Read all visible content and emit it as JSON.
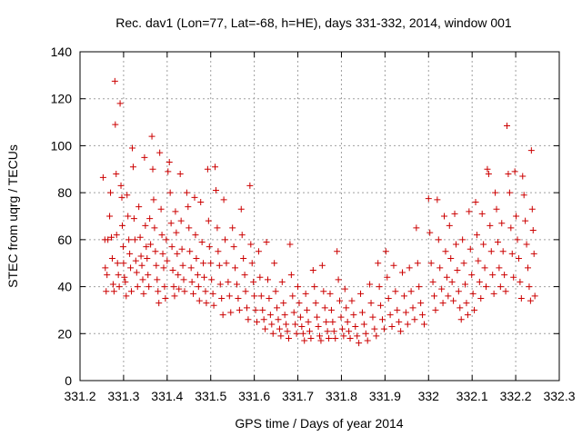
{
  "chart_data": {
    "type": "scatter",
    "title": "Rec. dav1 (Lon=77, Lat=-68, h=HE), days 331-332, 2014, window 001",
    "xlabel": "GPS time / Days of year 2014",
    "ylabel": "STEC from uqrg / TECUs",
    "xlim": [
      331.2,
      332.3
    ],
    "ylim": [
      0,
      140
    ],
    "xticks": [
      "331.2",
      "331.3",
      "331.4",
      "331.5",
      "331.6",
      "331.7",
      "331.8",
      "331.9",
      "332",
      "332.1",
      "332.2",
      "332.3"
    ],
    "yticks": [
      "0",
      "20",
      "40",
      "60",
      "80",
      "100",
      "120",
      "140"
    ],
    "grid": true,
    "marker": "+",
    "color": "#cc0000",
    "points": [
      [
        331.253,
        86.5
      ],
      [
        331.257,
        60
      ],
      [
        331.258,
        48
      ],
      [
        331.26,
        38
      ],
      [
        331.262,
        45
      ],
      [
        331.264,
        60
      ],
      [
        331.268,
        70
      ],
      [
        331.27,
        80
      ],
      [
        331.272,
        61
      ],
      [
        331.274,
        52
      ],
      [
        331.276,
        41
      ],
      [
        331.278,
        38
      ],
      [
        331.28,
        127.5
      ],
      [
        331.281,
        109
      ],
      [
        331.283,
        88
      ],
      [
        331.284,
        62
      ],
      [
        331.286,
        50
      ],
      [
        331.288,
        45
      ],
      [
        331.29,
        40
      ],
      [
        331.292,
        118
      ],
      [
        331.294,
        83
      ],
      [
        331.296,
        78
      ],
      [
        331.297,
        66
      ],
      [
        331.299,
        57
      ],
      [
        331.3,
        50
      ],
      [
        331.302,
        44
      ],
      [
        331.304,
        42
      ],
      [
        331.306,
        36
      ],
      [
        331.308,
        79
      ],
      [
        331.31,
        70
      ],
      [
        331.312,
        60
      ],
      [
        331.314,
        54
      ],
      [
        331.316,
        48
      ],
      [
        331.318,
        38
      ],
      [
        331.32,
        99
      ],
      [
        331.322,
        91
      ],
      [
        331.324,
        69
      ],
      [
        331.326,
        60
      ],
      [
        331.328,
        51
      ],
      [
        331.33,
        46
      ],
      [
        331.332,
        40
      ],
      [
        331.335,
        74
      ],
      [
        331.338,
        61
      ],
      [
        331.34,
        53
      ],
      [
        331.342,
        49
      ],
      [
        331.344,
        43
      ],
      [
        331.346,
        37
      ],
      [
        331.348,
        95
      ],
      [
        331.35,
        66
      ],
      [
        331.352,
        57
      ],
      [
        331.354,
        52
      ],
      [
        331.356,
        45
      ],
      [
        331.358,
        40
      ],
      [
        331.36,
        69
      ],
      [
        331.362,
        58
      ],
      [
        331.365,
        104
      ],
      [
        331.367,
        90
      ],
      [
        331.369,
        77
      ],
      [
        331.371,
        65
      ],
      [
        331.373,
        55
      ],
      [
        331.375,
        49
      ],
      [
        331.377,
        43
      ],
      [
        331.379,
        38
      ],
      [
        331.381,
        33
      ],
      [
        331.383,
        97
      ],
      [
        331.386,
        73
      ],
      [
        331.388,
        62
      ],
      [
        331.39,
        54
      ],
      [
        331.392,
        48
      ],
      [
        331.394,
        40
      ],
      [
        331.396,
        35
      ],
      [
        331.398,
        60
      ],
      [
        331.4,
        51
      ],
      [
        331.402,
        89
      ],
      [
        331.405,
        93
      ],
      [
        331.407,
        80
      ],
      [
        331.409,
        67
      ],
      [
        331.411,
        57
      ],
      [
        331.413,
        47
      ],
      [
        331.415,
        40
      ],
      [
        331.417,
        36
      ],
      [
        331.419,
        72
      ],
      [
        331.421,
        63
      ],
      [
        331.423,
        54
      ],
      [
        331.425,
        45
      ],
      [
        331.427,
        39
      ],
      [
        331.43,
        88
      ],
      [
        331.432,
        68
      ],
      [
        331.434,
        56
      ],
      [
        331.436,
        49
      ],
      [
        331.438,
        43
      ],
      [
        331.44,
        38
      ],
      [
        331.445,
        80
      ],
      [
        331.448,
        74
      ],
      [
        331.45,
        65
      ],
      [
        331.452,
        55
      ],
      [
        331.455,
        48
      ],
      [
        331.457,
        42
      ],
      [
        331.46,
        37
      ],
      [
        331.463,
        78
      ],
      [
        331.465,
        62
      ],
      [
        331.467,
        52
      ],
      [
        331.47,
        45
      ],
      [
        331.472,
        40
      ],
      [
        331.474,
        34
      ],
      [
        331.477,
        76
      ],
      [
        331.48,
        59
      ],
      [
        331.483,
        50
      ],
      [
        331.485,
        44
      ],
      [
        331.488,
        38
      ],
      [
        331.49,
        33
      ],
      [
        331.493,
        90
      ],
      [
        331.495,
        68
      ],
      [
        331.497,
        57
      ],
      [
        331.5,
        50
      ],
      [
        331.502,
        43
      ],
      [
        331.505,
        37
      ],
      [
        331.507,
        32
      ],
      [
        331.51,
        91
      ],
      [
        331.512,
        81
      ],
      [
        331.515,
        65
      ],
      [
        331.517,
        55
      ],
      [
        331.52,
        49
      ],
      [
        331.522,
        41
      ],
      [
        331.525,
        35
      ],
      [
        331.528,
        28
      ],
      [
        331.53,
        77
      ],
      [
        331.533,
        60
      ],
      [
        331.536,
        50
      ],
      [
        331.54,
        42
      ],
      [
        331.543,
        36
      ],
      [
        331.546,
        29
      ],
      [
        331.55,
        65
      ],
      [
        331.553,
        57
      ],
      [
        331.556,
        48
      ],
      [
        331.56,
        41
      ],
      [
        331.563,
        35
      ],
      [
        331.566,
        30
      ],
      [
        331.57,
        73
      ],
      [
        331.572,
        62
      ],
      [
        331.575,
        52
      ],
      [
        331.578,
        45
      ],
      [
        331.58,
        38
      ],
      [
        331.583,
        31
      ],
      [
        331.586,
        26
      ],
      [
        331.59,
        83
      ],
      [
        331.592,
        58
      ],
      [
        331.595,
        50
      ],
      [
        331.598,
        42
      ],
      [
        331.6,
        36
      ],
      [
        331.603,
        30
      ],
      [
        331.606,
        25
      ],
      [
        331.61,
        55
      ],
      [
        331.613,
        44
      ],
      [
        331.616,
        36
      ],
      [
        331.619,
        30
      ],
      [
        331.622,
        26
      ],
      [
        331.625,
        22
      ],
      [
        331.628,
        59
      ],
      [
        331.631,
        43
      ],
      [
        331.634,
        35
      ],
      [
        331.637,
        28
      ],
      [
        331.64,
        24
      ],
      [
        331.643,
        20
      ],
      [
        331.646,
        50
      ],
      [
        331.649,
        38
      ],
      [
        331.652,
        31
      ],
      [
        331.655,
        26
      ],
      [
        331.658,
        22
      ],
      [
        331.661,
        19
      ],
      [
        331.664,
        42
      ],
      [
        331.667,
        33
      ],
      [
        331.67,
        28
      ],
      [
        331.673,
        24
      ],
      [
        331.676,
        21
      ],
      [
        331.679,
        18
      ],
      [
        331.682,
        58
      ],
      [
        331.685,
        45
      ],
      [
        331.688,
        36
      ],
      [
        331.691,
        29
      ],
      [
        331.694,
        24
      ],
      [
        331.697,
        20
      ],
      [
        331.7,
        40
      ],
      [
        331.703,
        33
      ],
      [
        331.706,
        27
      ],
      [
        331.709,
        23
      ],
      [
        331.712,
        20
      ],
      [
        331.715,
        17
      ],
      [
        331.718,
        37
      ],
      [
        331.721,
        30
      ],
      [
        331.724,
        25
      ],
      [
        331.727,
        21
      ],
      [
        331.73,
        18
      ],
      [
        331.735,
        47
      ],
      [
        331.738,
        40
      ],
      [
        331.741,
        33
      ],
      [
        331.744,
        27
      ],
      [
        331.747,
        23
      ],
      [
        331.75,
        19
      ],
      [
        331.753,
        17
      ],
      [
        331.756,
        49
      ],
      [
        331.759,
        38
      ],
      [
        331.762,
        31
      ],
      [
        331.765,
        25
      ],
      [
        331.768,
        21
      ],
      [
        331.771,
        18
      ],
      [
        331.774,
        37
      ],
      [
        331.777,
        30
      ],
      [
        331.78,
        25
      ],
      [
        331.783,
        21
      ],
      [
        331.786,
        18
      ],
      [
        331.79,
        55
      ],
      [
        331.793,
        43
      ],
      [
        331.796,
        34
      ],
      [
        331.799,
        27
      ],
      [
        331.802,
        22
      ],
      [
        331.805,
        19
      ],
      [
        331.808,
        39
      ],
      [
        331.811,
        31
      ],
      [
        331.814,
        25
      ],
      [
        331.817,
        21
      ],
      [
        331.82,
        18
      ],
      [
        331.824,
        34
      ],
      [
        331.828,
        28
      ],
      [
        331.832,
        23
      ],
      [
        331.836,
        19
      ],
      [
        331.84,
        16
      ],
      [
        331.844,
        37
      ],
      [
        331.848,
        29
      ],
      [
        331.852,
        24
      ],
      [
        331.856,
        20
      ],
      [
        331.86,
        17
      ],
      [
        331.865,
        41
      ],
      [
        331.868,
        33
      ],
      [
        331.872,
        27
      ],
      [
        331.876,
        22
      ],
      [
        331.88,
        19
      ],
      [
        331.884,
        50
      ],
      [
        331.887,
        40
      ],
      [
        331.89,
        32
      ],
      [
        331.894,
        26
      ],
      [
        331.898,
        22
      ],
      [
        331.902,
        55
      ],
      [
        331.905,
        44
      ],
      [
        331.908,
        35
      ],
      [
        331.912,
        28
      ],
      [
        331.916,
        23
      ],
      [
        331.92,
        49
      ],
      [
        331.924,
        38
      ],
      [
        331.928,
        30
      ],
      [
        331.932,
        25
      ],
      [
        331.936,
        21
      ],
      [
        331.94,
        46
      ],
      [
        331.944,
        36
      ],
      [
        331.948,
        29
      ],
      [
        331.952,
        24
      ],
      [
        331.956,
        48
      ],
      [
        331.96,
        38
      ],
      [
        331.964,
        31
      ],
      [
        331.968,
        26
      ],
      [
        331.972,
        65
      ],
      [
        331.975,
        50
      ],
      [
        331.978,
        40
      ],
      [
        331.982,
        33
      ],
      [
        331.986,
        28
      ],
      [
        331.99,
        24
      ],
      [
        332.0,
        77.5
      ],
      [
        332.003,
        63
      ],
      [
        332.006,
        50
      ],
      [
        332.01,
        42
      ],
      [
        332.013,
        36
      ],
      [
        332.016,
        30
      ],
      [
        332.02,
        77
      ],
      [
        332.023,
        60
      ],
      [
        332.026,
        48
      ],
      [
        332.03,
        39
      ],
      [
        332.033,
        33
      ],
      [
        332.036,
        70
      ],
      [
        332.039,
        55
      ],
      [
        332.042,
        44
      ],
      [
        332.045,
        36
      ],
      [
        332.048,
        66
      ],
      [
        332.051,
        52
      ],
      [
        332.054,
        42
      ],
      [
        332.057,
        34
      ],
      [
        332.06,
        71
      ],
      [
        332.063,
        58
      ],
      [
        332.066,
        47
      ],
      [
        332.069,
        38
      ],
      [
        332.072,
        31
      ],
      [
        332.075,
        26
      ],
      [
        332.078,
        60
      ],
      [
        332.081,
        50
      ],
      [
        332.084,
        41
      ],
      [
        332.087,
        33
      ],
      [
        332.09,
        28
      ],
      [
        332.093,
        72
      ],
      [
        332.096,
        56
      ],
      [
        332.099,
        45
      ],
      [
        332.102,
        37
      ],
      [
        332.105,
        30
      ],
      [
        332.108,
        76
      ],
      [
        332.111,
        62
      ],
      [
        332.114,
        51
      ],
      [
        332.117,
        42
      ],
      [
        332.12,
        35
      ],
      [
        332.123,
        71
      ],
      [
        332.126,
        58
      ],
      [
        332.129,
        48
      ],
      [
        332.132,
        40
      ],
      [
        332.135,
        90
      ],
      [
        332.138,
        88
      ],
      [
        332.141,
        66
      ],
      [
        332.144,
        55
      ],
      [
        332.147,
        45
      ],
      [
        332.15,
        37
      ],
      [
        332.153,
        80
      ],
      [
        332.156,
        73
      ],
      [
        332.159,
        59
      ],
      [
        332.162,
        48
      ],
      [
        332.165,
        40
      ],
      [
        332.168,
        67
      ],
      [
        332.171,
        55
      ],
      [
        332.174,
        45
      ],
      [
        332.177,
        38
      ],
      [
        332.18,
        108.5
      ],
      [
        332.183,
        88
      ],
      [
        332.186,
        80
      ],
      [
        332.189,
        65
      ],
      [
        332.192,
        54
      ],
      [
        332.195,
        44
      ],
      [
        332.198,
        89
      ],
      [
        332.201,
        70
      ],
      [
        332.204,
        60
      ],
      [
        332.207,
        52
      ],
      [
        332.21,
        42
      ],
      [
        332.213,
        35
      ],
      [
        332.216,
        87
      ],
      [
        332.219,
        79
      ],
      [
        332.222,
        68
      ],
      [
        332.225,
        58
      ],
      [
        332.228,
        48
      ],
      [
        332.231,
        40
      ],
      [
        332.234,
        34
      ],
      [
        332.236,
        98
      ],
      [
        332.238,
        73
      ],
      [
        332.24,
        64
      ],
      [
        332.242,
        54
      ],
      [
        332.244,
        36
      ]
    ]
  }
}
